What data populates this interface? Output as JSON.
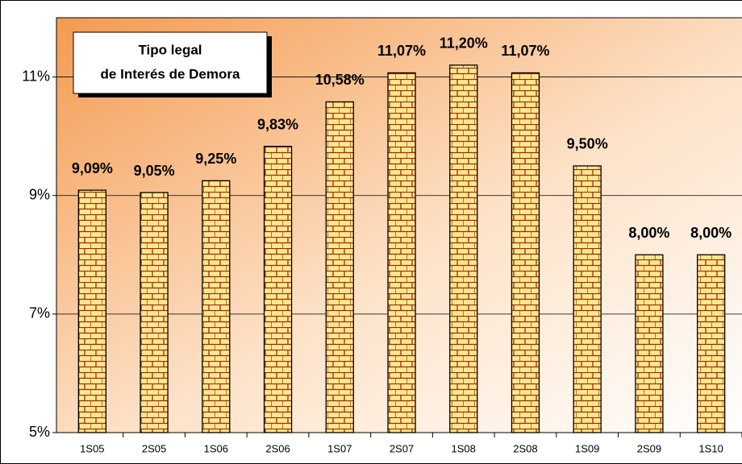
{
  "chart_data": {
    "type": "bar",
    "title": [
      "Tipo legal",
      "de Interés de Demora"
    ],
    "categories": [
      "1S05",
      "2S05",
      "1S06",
      "2S06",
      "1S07",
      "2S07",
      "1S08",
      "2S08",
      "1S09",
      "2S09",
      "1S10"
    ],
    "values": [
      9.09,
      9.05,
      9.25,
      9.83,
      10.58,
      11.07,
      11.2,
      11.07,
      9.5,
      8.0,
      8.0
    ],
    "value_labels": [
      "9,09%",
      "9,05%",
      "9,25%",
      "9,83%",
      "10,58%",
      "11,07%",
      "11,20%",
      "11,07%",
      "9,50%",
      "8,00%",
      "8,00%"
    ],
    "color": "#ffe88a",
    "ylim": [
      5,
      12
    ],
    "yticks": [
      {
        "value": 5,
        "label": "5%"
      },
      {
        "value": 7,
        "label": "7%"
      },
      {
        "value": 9,
        "label": "9%"
      },
      {
        "value": 11,
        "label": "11%"
      }
    ],
    "grid": true
  }
}
